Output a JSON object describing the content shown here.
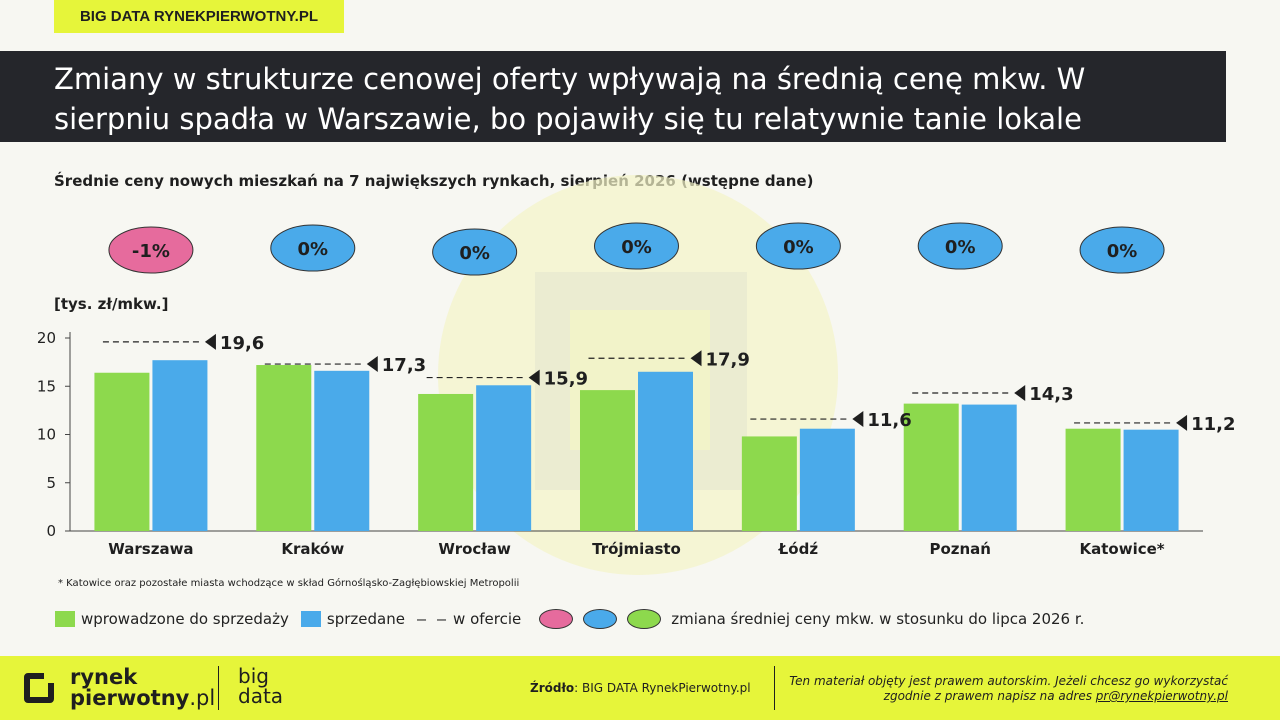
{
  "tag": "BIG DATA RYNEKPIERWOTNY.PL",
  "title": {
    "line1": "Zmiany w strukturze cenowej oferty wpływają na średnią cenę mkw. W",
    "line2": "sierpniu spadła w Warszawie, bo pojawiły się tu relatywnie tanie lokale"
  },
  "subtitle": "Średnie ceny nowych mieszkań na 7 największych rynkach, sierpień 2026 (wstępne dane)",
  "unit_label": "[tys. zł/mkw.]",
  "footnote": "* Katowice oraz pozostałe miasta wchodzące w skład Górnośląsko-Zagłębiowskiej Metropolii",
  "chart_data": {
    "type": "bar",
    "categories": [
      "Warszawa",
      "Kraków",
      "Wrocław",
      "Trójmiasto",
      "Łódź",
      "Poznań",
      "Katowice*"
    ],
    "series": [
      {
        "name": "wprowadzone do sprzedaży",
        "values": [
          16.4,
          17.2,
          14.2,
          14.6,
          9.8,
          13.2,
          10.6
        ],
        "color": "#8dd94d"
      },
      {
        "name": "sprzedane",
        "values": [
          17.7,
          16.6,
          15.1,
          16.5,
          10.6,
          13.1,
          10.5
        ],
        "color": "#4aaaea"
      },
      {
        "name": "w ofercie",
        "values": [
          19.6,
          17.3,
          15.9,
          17.9,
          11.6,
          14.3,
          11.2
        ],
        "labels": [
          "19,6",
          "17,3",
          "15,9",
          "17,9",
          "11,6",
          "14,3",
          "11,2"
        ]
      }
    ],
    "change": [
      {
        "label": "-1%",
        "color": "#e66b9d"
      },
      {
        "label": "0%",
        "color": "#4aaaea"
      },
      {
        "label": "0%",
        "color": "#4aaaea"
      },
      {
        "label": "0%",
        "color": "#4aaaea"
      },
      {
        "label": "0%",
        "color": "#4aaaea"
      },
      {
        "label": "0%",
        "color": "#4aaaea"
      },
      {
        "label": "0%",
        "color": "#4aaaea"
      }
    ],
    "ylim": [
      0,
      20
    ],
    "yticks": [
      0,
      5,
      10,
      15,
      20
    ],
    "ylabel": "[tys. zł/mkw.]",
    "grid": false,
    "legend_position": "bottom-left"
  },
  "legend": {
    "introduced": "wprowadzone do sprzedaży",
    "sold": "sprzedane",
    "dash_symbol": "– –",
    "offer": "w ofercie",
    "change_label": "zmiana średniej ceny mkw. w stosunku do lipca 2026 r.",
    "change_colors": [
      "#e66b9d",
      "#4aaaea",
      "#8dd94d"
    ]
  },
  "footer": {
    "logo_line1": "rynek",
    "logo_line2a": "pierwotny",
    "logo_line2b": ".pl",
    "bigdata_1": "big",
    "bigdata_2": "data",
    "source_bold": "Źródło",
    "source_text": ": BIG DATA RynekPierwotny.pl",
    "copyright_1": "Ten materiał objęty jest prawem autorskim. Jeżeli chcesz go wykorzystać",
    "copyright_2": "zgodnie z prawem napisz na adres ",
    "copyright_email": "pr@rynekpierwotny.pl"
  },
  "colors": {
    "accent": "#e6f53a",
    "dark": "#25262b",
    "green": "#8dd94d",
    "blue": "#4aaaea",
    "pink": "#e66b9d"
  }
}
